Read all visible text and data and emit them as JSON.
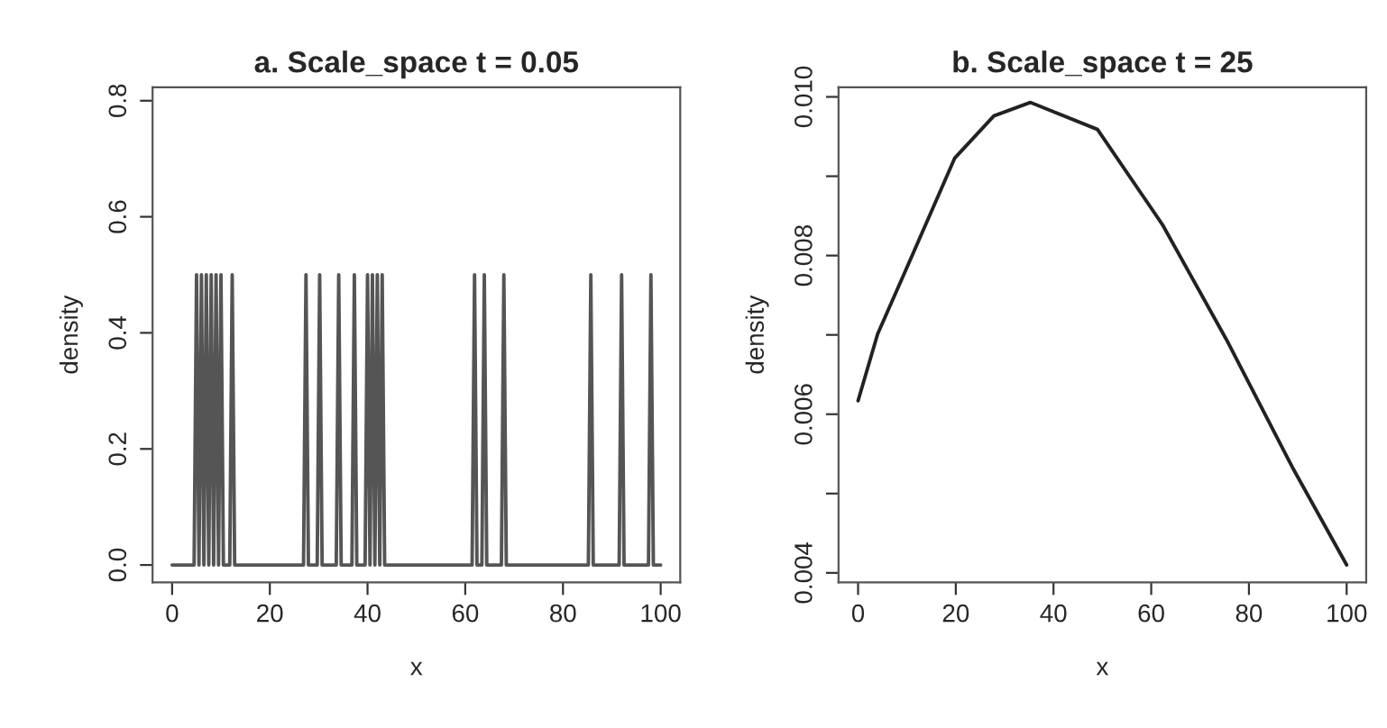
{
  "chart_data": [
    {
      "type": "line",
      "title": "a. Scale_space t = 0.05",
      "xlabel": "x",
      "ylabel": "density",
      "grid": false,
      "legend": false,
      "marker": "none",
      "line_style": "solid",
      "xlim": [
        -4,
        104
      ],
      "ylim": [
        -0.03,
        0.823
      ],
      "xticks": [
        0,
        20,
        40,
        60,
        80,
        100
      ],
      "yticks": [
        {
          "value": 0,
          "label": "0.0"
        },
        0.2,
        0.4,
        0.6,
        0.8
      ],
      "series": [
        {
          "color": "#555555",
          "x": [
            0,
            4.5,
            5,
            5.5,
            6,
            6.5,
            7,
            7.5,
            8,
            8.5,
            9,
            9.5,
            10,
            10.5,
            11.8,
            12.3,
            12.8,
            26.9,
            27.4,
            27.9,
            29.7,
            30.2,
            30.7,
            33.6,
            34.1,
            34.6,
            36.8,
            37.3,
            37.8,
            39.5,
            40,
            40.5,
            41,
            41.5,
            42,
            42.5,
            43,
            43.5,
            61.4,
            61.9,
            62.4,
            63.4,
            63.9,
            64.4,
            67.4,
            67.9,
            68.4,
            85.2,
            85.7,
            86.2,
            91.5,
            92,
            92.5,
            97.5,
            98,
            98.5,
            100
          ],
          "values": [
            0,
            0,
            0.5,
            0,
            0.5,
            0,
            0.5,
            0,
            0.5,
            0,
            0.5,
            0,
            0.5,
            0,
            0,
            0.5,
            0,
            0,
            0.5,
            0,
            0,
            0.5,
            0,
            0,
            0.5,
            0,
            0,
            0.5,
            0,
            0,
            0.5,
            0,
            0.5,
            0,
            0.5,
            0,
            0.5,
            0,
            0,
            0.5,
            0,
            0,
            0.5,
            0,
            0,
            0.5,
            0,
            0,
            0.5,
            0,
            0,
            0.5,
            0,
            0,
            0.5,
            0,
            0
          ]
        }
      ]
    },
    {
      "type": "line",
      "title": "b. Scale_space t = 25",
      "xlabel": "x",
      "ylabel": "density",
      "grid": false,
      "legend": false,
      "marker": "none",
      "line_style": "solid",
      "xlim": [
        -4,
        104
      ],
      "ylim": [
        0.00388,
        0.01012
      ],
      "xticks": [
        0,
        20,
        40,
        60,
        80,
        100
      ],
      "yticks": [
        0.004,
        {
          "value": 0.005,
          "label": null
        },
        0.006,
        {
          "value": 0.007,
          "label": null
        },
        0.008,
        {
          "value": 0.009,
          "label": null
        },
        {
          "value": 0.01,
          "label": "0.010"
        }
      ],
      "series": [
        {
          "color": "#222222",
          "x": [
            0,
            4,
            9.5,
            19.8,
            27.8,
            35.3,
            49,
            62.3,
            75.4,
            88.9,
            100
          ],
          "values": [
            0.00617,
            0.00701,
            0.00778,
            0.00923,
            0.00976,
            0.00993,
            0.00959,
            0.00839,
            0.00694,
            0.00533,
            0.0041
          ]
        }
      ]
    }
  ]
}
